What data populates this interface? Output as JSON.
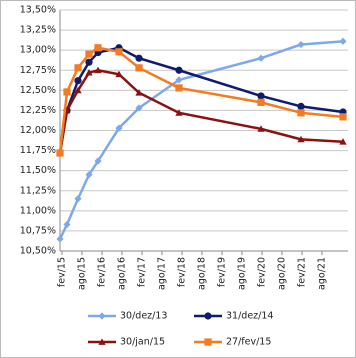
{
  "chart_data": {
    "type": "line",
    "x": [
      -0.1,
      0.25,
      0.8,
      1.35,
      1.8,
      2.85,
      3.85,
      5.85,
      9.95,
      11.95,
      14.05
    ],
    "xlim": [
      -0.1,
      14.3
    ],
    "xticks": [
      {
        "value": 0,
        "label": "fev/15"
      },
      {
        "value": 1,
        "label": "ago/15"
      },
      {
        "value": 2,
        "label": "fev/16"
      },
      {
        "value": 3,
        "label": "ago/16"
      },
      {
        "value": 4,
        "label": "fev/17"
      },
      {
        "value": 5,
        "label": "ago/17"
      },
      {
        "value": 6,
        "label": "fev/18"
      },
      {
        "value": 7,
        "label": "ago/18"
      },
      {
        "value": 8,
        "label": "fev/19"
      },
      {
        "value": 9,
        "label": "ago/19"
      },
      {
        "value": 10,
        "label": "fev/20"
      },
      {
        "value": 11,
        "label": "ago/20"
      },
      {
        "value": 12,
        "label": "fev/21"
      },
      {
        "value": 13,
        "label": "ago/21"
      }
    ],
    "ylim": [
      10.5,
      13.5
    ],
    "yticks": [
      {
        "value": 10.5,
        "label": "10,50%"
      },
      {
        "value": 10.75,
        "label": "10,75%"
      },
      {
        "value": 11,
        "label": "11,00%"
      },
      {
        "value": 11.25,
        "label": "11,25%"
      },
      {
        "value": 11.5,
        "label": "11,50%"
      },
      {
        "value": 11.75,
        "label": "11,75%"
      },
      {
        "value": 12,
        "label": "12,00%"
      },
      {
        "value": 12.25,
        "label": "12,25%"
      },
      {
        "value": 12.5,
        "label": "12,50%"
      },
      {
        "value": 12.75,
        "label": "12,75%"
      },
      {
        "value": 13,
        "label": "13,00%"
      },
      {
        "value": 13.25,
        "label": "13,25%"
      },
      {
        "value": 13.5,
        "label": "13,50%"
      }
    ],
    "grid": true,
    "series": [
      {
        "name": "30/dez/13",
        "color": "#7ea8ea",
        "marker": "diamond",
        "values": [
          10.65,
          10.83,
          11.15,
          11.45,
          11.62,
          12.03,
          12.28,
          12.63,
          12.9,
          13.07,
          13.11
        ]
      },
      {
        "name": "31/dez/14",
        "color": "#0f1c6e",
        "marker": "circle",
        "values": [
          11.72,
          12.25,
          12.62,
          12.85,
          12.97,
          13.03,
          12.9,
          12.75,
          12.43,
          12.3,
          12.23
        ]
      },
      {
        "name": "30/jan/15",
        "color": "#8b1010",
        "marker": "triangle",
        "values": [
          11.72,
          12.25,
          12.5,
          12.72,
          12.75,
          12.7,
          12.47,
          12.22,
          12.02,
          11.89,
          11.86
        ]
      },
      {
        "name": "27/fev/15",
        "color": "#f47b20",
        "marker": "square",
        "values": [
          11.72,
          12.48,
          12.78,
          12.95,
          13.03,
          12.98,
          12.78,
          12.53,
          12.35,
          12.22,
          12.17
        ]
      }
    ]
  }
}
